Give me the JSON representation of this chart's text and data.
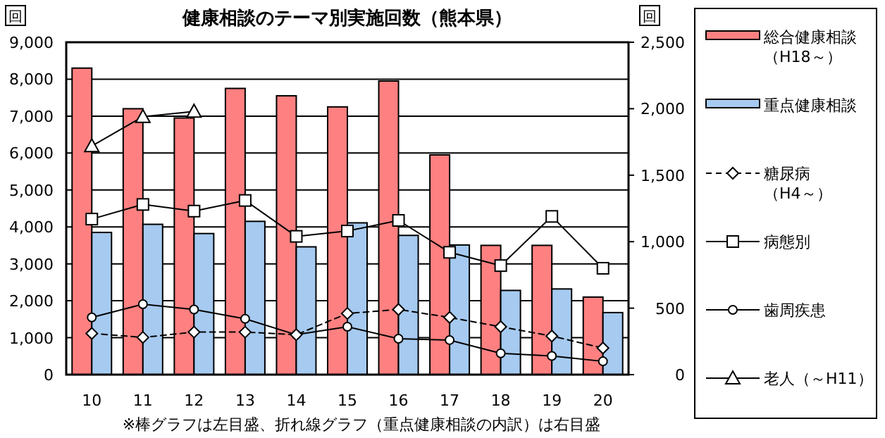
{
  "chart_data": {
    "type": "bar",
    "title": "健康相談のテーマ別実施回数（熊本県）",
    "ylabel": "回",
    "y2label": "回",
    "categories": [
      "10",
      "11",
      "12",
      "13",
      "14",
      "15",
      "16",
      "17",
      "18",
      "19",
      "20"
    ],
    "series": [
      {
        "name": "総合健康相談（H18～）",
        "color": "#ff8080",
        "values": [
          8300,
          7200,
          6950,
          7750,
          7550,
          7250,
          7950,
          5950,
          3500,
          3500,
          2100
        ]
      },
      {
        "name": "重点健康相談",
        "color": "#a6caf0",
        "values": [
          3850,
          4070,
          3820,
          4150,
          3460,
          4110,
          3770,
          3510,
          2280,
          2320,
          1680
        ]
      },
      {
        "name": "糖尿病（H4～）",
        "type": "line",
        "axis": "y2",
        "color": "#000000",
        "marker": "diamond",
        "line_style": "dashed",
        "values": [
          310,
          280,
          320,
          320,
          300,
          460,
          490,
          430,
          360,
          290,
          200
        ]
      },
      {
        "name": "病態別",
        "type": "line",
        "axis": "y2",
        "color": "#000000",
        "marker": "square",
        "line_style": "solid",
        "values": [
          1170,
          1280,
          1230,
          1310,
          1040,
          1080,
          1160,
          920,
          820,
          1190,
          800
        ]
      },
      {
        "name": "歯周疾患",
        "type": "line",
        "axis": "y2",
        "color": "#000000",
        "marker": "circle",
        "line_style": "solid",
        "values": [
          430,
          530,
          490,
          420,
          300,
          360,
          270,
          260,
          160,
          140,
          100
        ]
      },
      {
        "name": "老人（～H11）",
        "type": "line",
        "axis": "y2",
        "color": "#000000",
        "marker": "triangle",
        "line_style": "solid",
        "values": [
          1720,
          1940,
          1980,
          null,
          null,
          null,
          null,
          null,
          null,
          null,
          null
        ]
      }
    ],
    "ylim": [
      0,
      9000
    ],
    "yticks": [
      {
        "value": 0,
        "label": "0"
      },
      {
        "value": 1000,
        "label": "1,000"
      },
      {
        "value": 2000,
        "label": "2,000"
      },
      {
        "value": 3000,
        "label": "3,000"
      },
      {
        "value": 4000,
        "label": "4,000"
      },
      {
        "value": 5000,
        "label": "5,000"
      },
      {
        "value": 6000,
        "label": "6,000"
      },
      {
        "value": 7000,
        "label": "7,000"
      },
      {
        "value": 8000,
        "label": "8,000"
      },
      {
        "value": 9000,
        "label": "9,000"
      }
    ],
    "y2lim": [
      0,
      2500
    ],
    "y2ticks": [
      {
        "value": 0,
        "label": "0"
      },
      {
        "value": 500,
        "label": "500"
      },
      {
        "value": 1000,
        "label": "1,000"
      },
      {
        "value": 1500,
        "label": "1,500"
      },
      {
        "value": 2000,
        "label": "2,000"
      },
      {
        "value": 2500,
        "label": "2,500"
      }
    ],
    "grid": "y",
    "legend": "right",
    "annotations": [
      "※棒グラフは左目盛、折れ線グラフ（重点健康相談の内訳）は右目盛"
    ]
  }
}
